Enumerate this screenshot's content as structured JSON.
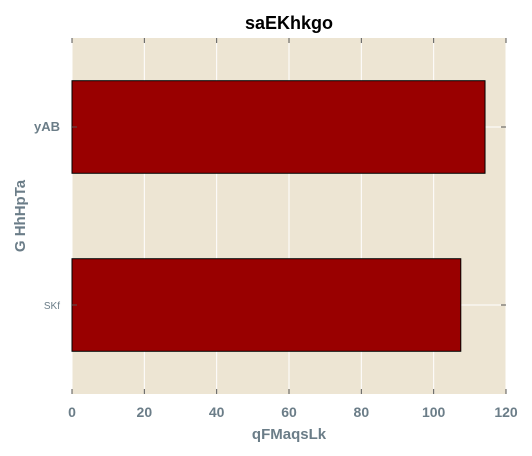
{
  "chart_data": {
    "type": "bar",
    "orientation": "horizontal",
    "title": "saEKhkgo",
    "xlabel": "qFMaqsLk",
    "ylabel": "G HhHpTa",
    "categories": [
      "SKf",
      "yAB"
    ],
    "values": [
      107.5,
      114.2
    ],
    "xlim": [
      0,
      120
    ],
    "xticks": [
      "0",
      "20",
      "40",
      "60",
      "80",
      "100",
      "120"
    ],
    "grid": true,
    "legend": "none",
    "colors": {
      "plot_background": "#ede5d3",
      "bar_fill": "#990000",
      "bar_edge": "#000000",
      "grid": "#ffffff",
      "text": "#6b7d88"
    }
  }
}
